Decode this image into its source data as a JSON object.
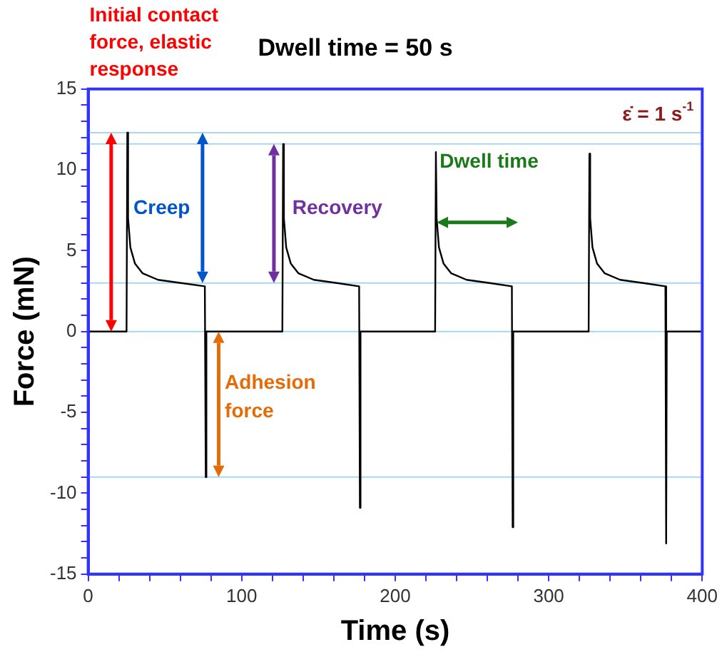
{
  "chart_data": {
    "type": "line",
    "title": "Dwell time = 50 s",
    "xlabel": "Time (s)",
    "ylabel": "Force (mN)",
    "x": [
      0,
      25,
      25.5,
      26,
      27.5,
      30.5,
      35.5,
      45.5,
      60.5,
      76,
      76.6,
      77,
      126.5,
      127,
      127.5,
      129,
      132,
      137,
      147,
      162,
      176.5,
      177,
      177.4,
      226,
      226.5,
      227,
      228.5,
      231.5,
      236.5,
      246.5,
      261.5,
      276,
      276.5,
      276.9,
      326,
      326.5,
      327,
      328.5,
      331.5,
      336.5,
      346.5,
      361.5,
      376,
      376.5,
      376.9,
      400
    ],
    "series": [
      {
        "color": "#000000",
        "values": [
          0,
          0,
          12.3,
          7,
          5.2,
          4.2,
          3.6,
          3.2,
          3,
          2.8,
          -9,
          0,
          0,
          11.6,
          7,
          5.2,
          4.2,
          3.6,
          3.2,
          3,
          2.8,
          -10.9,
          0,
          0,
          11.1,
          7,
          5.2,
          4.2,
          3.6,
          3.2,
          3,
          2.8,
          -12.1,
          0,
          0,
          11,
          7,
          5.2,
          4.2,
          3.6,
          3.2,
          3,
          2.8,
          -13.1,
          0,
          0
        ]
      }
    ],
    "xlim": [
      0,
      400
    ],
    "xticks": [
      0,
      {
        "value": 20,
        "label": null
      },
      {
        "value": 40,
        "label": null
      },
      {
        "value": 60,
        "label": null
      },
      {
        "value": 80,
        "label": null
      },
      100,
      {
        "value": 120,
        "label": null
      },
      {
        "value": 140,
        "label": null
      },
      {
        "value": 160,
        "label": null
      },
      {
        "value": 180,
        "label": null
      },
      200,
      {
        "value": 220,
        "label": null
      },
      {
        "value": 240,
        "label": null
      },
      {
        "value": 260,
        "label": null
      },
      {
        "value": 280,
        "label": null
      },
      300,
      {
        "value": 320,
        "label": null
      },
      {
        "value": 340,
        "label": null
      },
      {
        "value": 360,
        "label": null
      },
      {
        "value": 380,
        "label": null
      },
      400
    ],
    "ylim": [
      -15,
      15
    ],
    "yticks": [
      -15,
      {
        "value": -14,
        "label": null
      },
      {
        "value": -13,
        "label": null
      },
      {
        "value": -12,
        "label": null
      },
      {
        "value": -11,
        "label": null
      },
      -10,
      {
        "value": -9,
        "label": null
      },
      {
        "value": -8,
        "label": null
      },
      {
        "value": -7,
        "label": null
      },
      {
        "value": -6,
        "label": null
      },
      -5,
      {
        "value": -4,
        "label": null
      },
      {
        "value": -3,
        "label": null
      },
      {
        "value": -2,
        "label": null
      },
      {
        "value": -1,
        "label": null
      },
      0,
      {
        "value": 1,
        "label": null
      },
      {
        "value": 2,
        "label": null
      },
      {
        "value": 3,
        "label": null
      },
      {
        "value": 4,
        "label": null
      },
      5,
      {
        "value": 6,
        "label": null
      },
      {
        "value": 7,
        "label": null
      },
      {
        "value": 8,
        "label": null
      },
      {
        "value": 9,
        "label": null
      },
      10,
      {
        "value": 11,
        "label": null
      },
      {
        "value": 12,
        "label": null
      },
      {
        "value": 13,
        "label": null
      },
      {
        "value": 14,
        "label": null
      },
      15
    ],
    "ref_lines": [
      {
        "axis": "y",
        "value": 12.3,
        "color": "#a8d8f0"
      },
      {
        "axis": "y",
        "value": 11.6,
        "color": "#a8d8f0"
      },
      {
        "axis": "y",
        "value": 3,
        "color": "#a8d8f0"
      },
      {
        "axis": "y",
        "value": 0,
        "color": "#a8d8f0"
      },
      {
        "axis": "y",
        "value": -9,
        "color": "#a8d8f0"
      }
    ],
    "annotations": [
      "Initial contact force, elastic response",
      "ε̇ = 1 s$^{-1}$",
      "Creep",
      "Recovery",
      "Dwell time",
      "Adhesion force"
    ],
    "grid": false,
    "legend": false
  }
}
